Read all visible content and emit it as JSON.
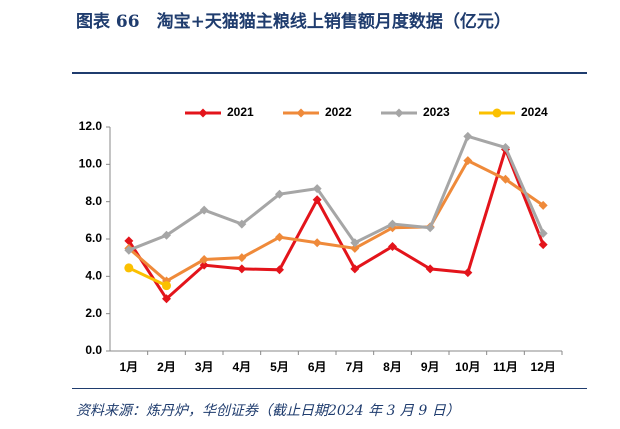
{
  "chart_data": {
    "type": "line",
    "title": "图表 66　淘宝+天猫猫主粮线上销售额月度数据（亿元）",
    "source": "资料来源：炼丹炉，华创证券（截止日期2024 年 3 月 9 日）",
    "categories": [
      "1月",
      "2月",
      "3月",
      "4月",
      "5月",
      "6月",
      "7月",
      "8月",
      "9月",
      "10月",
      "11月",
      "12月"
    ],
    "series": [
      {
        "name": "2021",
        "color": "#e3141b",
        "marker": "diamond",
        "values": [
          5.9,
          2.8,
          4.6,
          4.4,
          4.35,
          8.1,
          4.4,
          5.6,
          4.4,
          4.2,
          10.8,
          5.7
        ]
      },
      {
        "name": "2022",
        "color": "#ef8a3a",
        "marker": "diamond",
        "values": [
          5.5,
          3.75,
          4.9,
          5.0,
          6.1,
          5.8,
          5.5,
          6.6,
          6.65,
          10.2,
          9.2,
          7.8
        ]
      },
      {
        "name": "2023",
        "color": "#a6a6a6",
        "marker": "diamond",
        "values": [
          5.4,
          6.2,
          7.55,
          6.8,
          8.4,
          8.7,
          5.8,
          6.8,
          6.6,
          11.5,
          10.9,
          6.3
        ]
      },
      {
        "name": "2024",
        "color": "#fbc000",
        "marker": "circle",
        "values": [
          4.45,
          3.5,
          null,
          null,
          null,
          null,
          null,
          null,
          null,
          null,
          null,
          null
        ]
      }
    ],
    "ylim": [
      0,
      12
    ],
    "yticks": [
      {
        "value": 0,
        "label": "0.0"
      },
      {
        "value": 2,
        "label": "2.0"
      },
      {
        "value": 4,
        "label": "4.0"
      },
      {
        "value": 6,
        "label": "6.0"
      },
      {
        "value": 8,
        "label": "8.0"
      },
      {
        "value": 10,
        "label": "10.0"
      },
      {
        "value": 12,
        "label": "12.0"
      }
    ],
    "legend": "top"
  }
}
